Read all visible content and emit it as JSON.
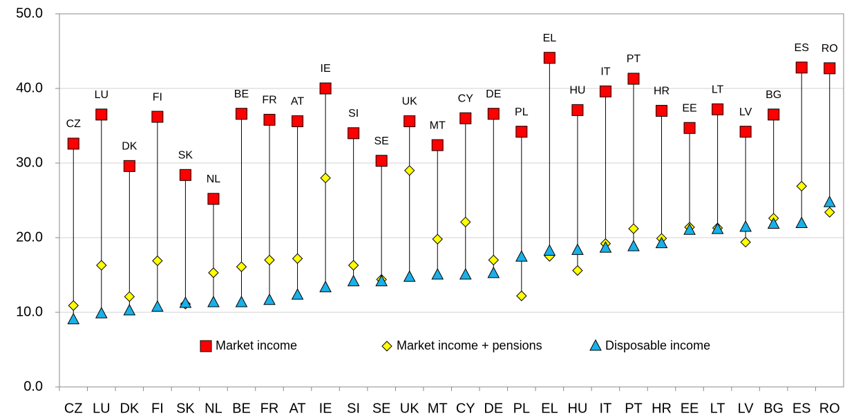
{
  "chart_data": {
    "type": "dot-range",
    "categories": [
      "CZ",
      "LU",
      "DK",
      "FI",
      "SK",
      "NL",
      "BE",
      "FR",
      "AT",
      "IE",
      "SI",
      "SE",
      "UK",
      "MT",
      "CY",
      "DE",
      "PL",
      "EL",
      "HU",
      "IT",
      "PT",
      "HR",
      "EE",
      "LT",
      "LV",
      "BG",
      "ES",
      "RO"
    ],
    "series": [
      {
        "name": "Market income",
        "color": "#ff0000",
        "marker": "square",
        "values": [
          32.6,
          36.5,
          29.6,
          36.2,
          28.4,
          25.2,
          36.6,
          35.8,
          35.6,
          40.0,
          34.0,
          30.3,
          35.6,
          32.4,
          36.0,
          36.6,
          34.2,
          44.1,
          37.1,
          39.6,
          41.3,
          37.0,
          34.7,
          37.2,
          34.2,
          36.5,
          42.8,
          42.7
        ]
      },
      {
        "name": "Market income + pensions",
        "color": "#ffff00",
        "marker": "diamond",
        "values": [
          10.9,
          16.3,
          12.1,
          16.9,
          11.1,
          15.3,
          16.1,
          17.0,
          17.2,
          28.0,
          16.3,
          14.4,
          29.0,
          19.8,
          22.1,
          17.0,
          12.2,
          17.5,
          15.6,
          19.2,
          21.2,
          19.9,
          21.4,
          21.3,
          19.4,
          22.6,
          26.9,
          23.4
        ]
      },
      {
        "name": "Disposable income",
        "color": "#1ab0e8",
        "marker": "triangle",
        "values": [
          9.0,
          9.8,
          10.2,
          10.7,
          11.2,
          11.3,
          11.3,
          11.6,
          12.3,
          13.3,
          14.1,
          14.1,
          14.7,
          15.0,
          15.0,
          15.2,
          17.4,
          18.2,
          18.3,
          18.6,
          18.8,
          19.2,
          21.0,
          21.1,
          21.4,
          21.8,
          21.9,
          24.7
        ]
      }
    ],
    "ylim": [
      0,
      50
    ],
    "yticks": [
      {
        "value": 0,
        "label": "0.0"
      },
      {
        "value": 10,
        "label": "10.0"
      },
      {
        "value": 20,
        "label": "20.0"
      },
      {
        "value": 30,
        "label": "30.0"
      },
      {
        "value": 40,
        "label": "40.0"
      },
      {
        "value": 50,
        "label": "50.0"
      }
    ],
    "grid": true,
    "legend": "bottom"
  }
}
